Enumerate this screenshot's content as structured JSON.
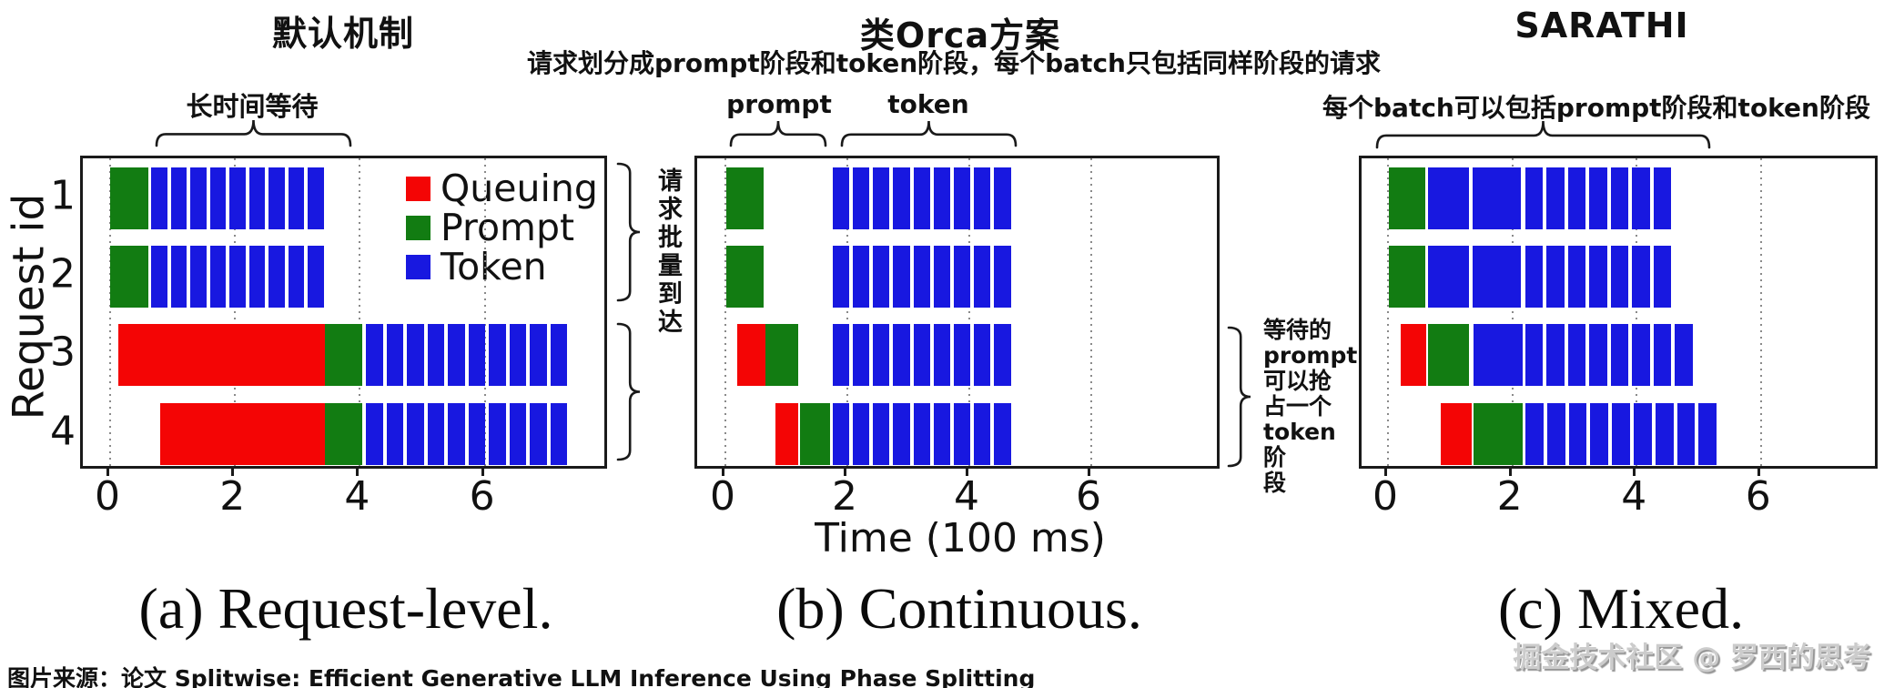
{
  "header": {
    "title_a": "默认机制",
    "title_b": "类Orca方案",
    "subtitle_b": "请求划分成prompt阶段和token阶段，每个batch只包括同样阶段的请求",
    "title_c": "SARATHI"
  },
  "annotations": {
    "long_wait": "长时间等待",
    "phase_prompt": "prompt",
    "phase_token": "token",
    "mixed_note": "每个batch可以包括prompt阶段和token阶段",
    "batch_arrival": "请求批量到达",
    "preempt_note": "等待的\nprompt\n可以抢\n占一个\ntoken阶\n段"
  },
  "axis": {
    "ylabel": "Request id",
    "xlabel": "Time (100 ms)",
    "xticks": [
      0,
      2,
      4,
      6
    ],
    "row_labels": [
      "1",
      "2",
      "3",
      "4"
    ]
  },
  "legend": {
    "items": [
      {
        "label": "Queuing",
        "color": "#f40505"
      },
      {
        "label": "Prompt",
        "color": "#127c12"
      },
      {
        "label": "Token",
        "color": "#1818e0"
      }
    ]
  },
  "colors": {
    "queuing": "#f40505",
    "prompt": "#127c12",
    "token": "#1818e0",
    "axis": "#1a1a1a",
    "grid": "#8a8a8a"
  },
  "captions": {
    "a": "(a) Request-level.",
    "b": "(b) Continuous.",
    "c": "(c) Mixed."
  },
  "footer": "图片来源：论文 Splitwise: Efficient Generative LLM Inference Using Phase Splitting",
  "watermark": "掘金技术社区 @ 罗西的思考",
  "chart_data": [
    {
      "id": "a",
      "type": "bar",
      "title": "默认机制",
      "caption": "(a) Request-level.",
      "xlabel": "Time (100 ms)",
      "ylabel": "Request id",
      "xticks": [
        0,
        2,
        4,
        6
      ],
      "xlim": [
        -0.45,
        8.0
      ],
      "legend_position": "upper right",
      "grid": true,
      "rows": [
        {
          "label": "1",
          "segments": [
            {
              "kind": "prompt",
              "start": 0.0,
              "end": 0.61
            },
            {
              "kind": "token",
              "start": 0.66,
              "end": 3.42,
              "count": 9
            }
          ]
        },
        {
          "label": "2",
          "segments": [
            {
              "kind": "prompt",
              "start": 0.0,
              "end": 0.61
            },
            {
              "kind": "token",
              "start": 0.66,
              "end": 3.42,
              "count": 9
            }
          ]
        },
        {
          "label": "3",
          "segments": [
            {
              "kind": "queuing",
              "start": 0.13,
              "end": 3.44
            },
            {
              "kind": "prompt",
              "start": 3.44,
              "end": 4.04
            },
            {
              "kind": "token",
              "start": 4.1,
              "end": 7.32,
              "count": 10
            }
          ]
        },
        {
          "label": "4",
          "segments": [
            {
              "kind": "queuing",
              "start": 0.8,
              "end": 3.44
            },
            {
              "kind": "prompt",
              "start": 3.44,
              "end": 4.04
            },
            {
              "kind": "token",
              "start": 4.1,
              "end": 7.32,
              "count": 10
            }
          ]
        }
      ]
    },
    {
      "id": "b",
      "type": "bar",
      "title": "类Orca方案",
      "caption": "(b) Continuous.",
      "xticks": [
        0,
        2,
        4,
        6
      ],
      "xlim": [
        -0.46,
        8.15
      ],
      "grid": true,
      "rows": [
        {
          "label": "1",
          "segments": [
            {
              "kind": "prompt",
              "start": 0.02,
              "end": 0.62
            },
            {
              "kind": "token",
              "start": 1.76,
              "end": 4.68,
              "count": 9
            }
          ]
        },
        {
          "label": "2",
          "segments": [
            {
              "kind": "prompt",
              "start": 0.02,
              "end": 0.62
            },
            {
              "kind": "token",
              "start": 1.76,
              "end": 4.68,
              "count": 9
            }
          ]
        },
        {
          "label": "3",
          "segments": [
            {
              "kind": "queuing",
              "start": 0.19,
              "end": 0.66
            },
            {
              "kind": "prompt",
              "start": 0.66,
              "end": 1.19
            },
            {
              "kind": "token",
              "start": 1.76,
              "end": 4.68,
              "count": 9
            }
          ]
        },
        {
          "label": "4",
          "segments": [
            {
              "kind": "queuing",
              "start": 0.82,
              "end": 1.19
            },
            {
              "kind": "prompt",
              "start": 1.22,
              "end": 1.72
            },
            {
              "kind": "token",
              "start": 1.76,
              "end": 4.68,
              "count": 9
            }
          ]
        }
      ]
    },
    {
      "id": "c",
      "type": "bar",
      "title": "SARATHI",
      "caption": "(c) Mixed.",
      "xticks": [
        0,
        2,
        4,
        6
      ],
      "xlim": [
        -0.42,
        7.92
      ],
      "grid": true,
      "rows": [
        {
          "label": "1",
          "segments": [
            {
              "kind": "prompt",
              "start": 0.01,
              "end": 0.6
            },
            {
              "kind": "token",
              "start": 0.64,
              "end": 1.31
            },
            {
              "kind": "token",
              "start": 1.36,
              "end": 2.14
            },
            {
              "kind": "token",
              "start": 2.21,
              "end": 4.56,
              "count": 7
            }
          ]
        },
        {
          "label": "2",
          "segments": [
            {
              "kind": "prompt",
              "start": 0.01,
              "end": 0.6
            },
            {
              "kind": "token",
              "start": 0.64,
              "end": 1.31
            },
            {
              "kind": "token",
              "start": 1.36,
              "end": 2.14
            },
            {
              "kind": "token",
              "start": 2.21,
              "end": 4.56,
              "count": 7
            }
          ]
        },
        {
          "label": "3",
          "segments": [
            {
              "kind": "queuing",
              "start": 0.21,
              "end": 0.61
            },
            {
              "kind": "prompt",
              "start": 0.65,
              "end": 1.31
            },
            {
              "kind": "token",
              "start": 1.37,
              "end": 2.17
            },
            {
              "kind": "token",
              "start": 2.21,
              "end": 4.9,
              "count": 8
            }
          ]
        },
        {
          "label": "4",
          "segments": [
            {
              "kind": "queuing",
              "start": 0.85,
              "end": 1.35
            },
            {
              "kind": "prompt",
              "start": 1.37,
              "end": 2.17
            },
            {
              "kind": "token",
              "start": 2.21,
              "end": 5.29,
              "count": 9
            }
          ]
        }
      ]
    }
  ]
}
